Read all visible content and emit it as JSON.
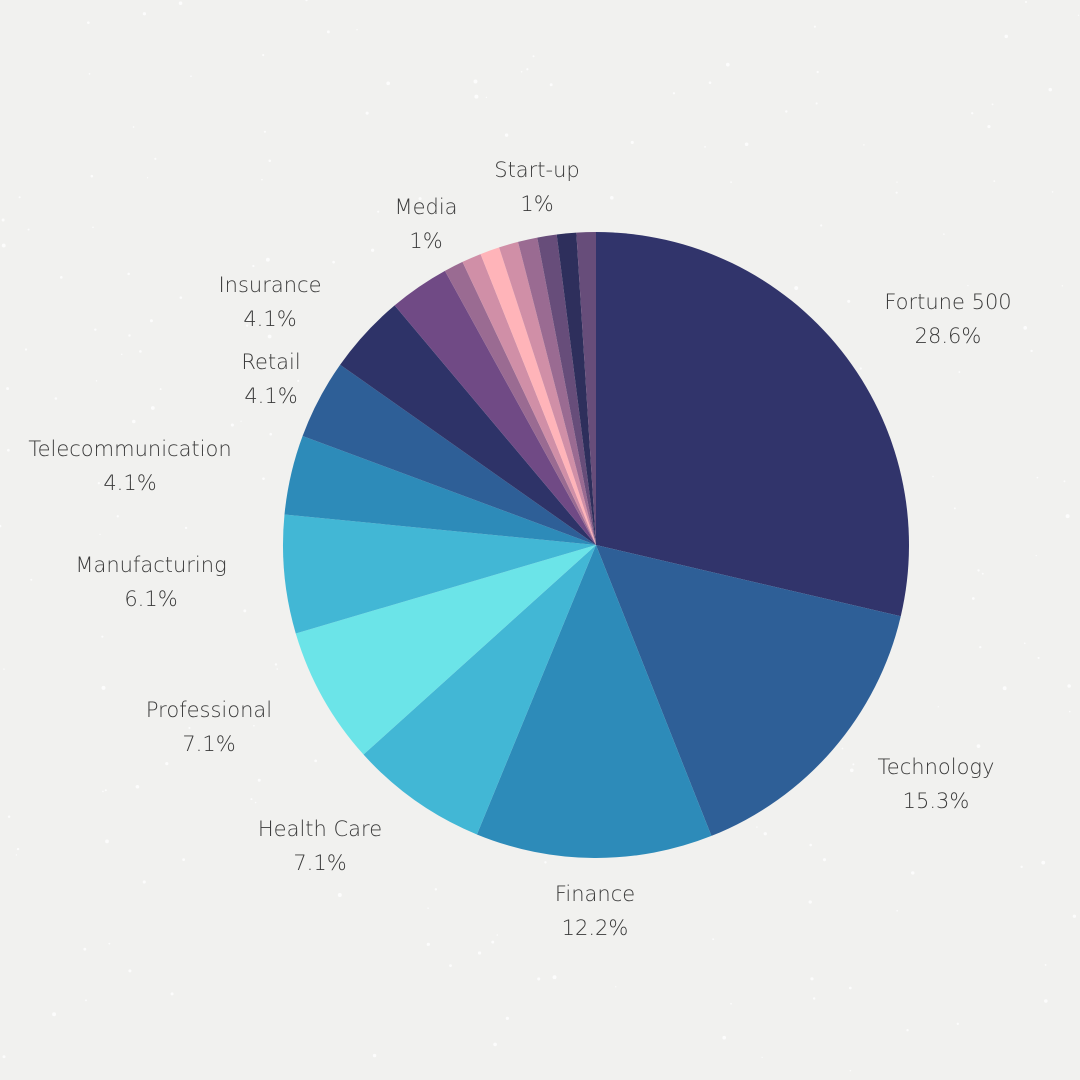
{
  "chart_data": {
    "type": "pie",
    "title": "",
    "slices": [
      {
        "label": "Fortune 500",
        "value": 28.6,
        "value_label": "28.6%",
        "color": "#31346b"
      },
      {
        "label": "Technology",
        "value": 15.3,
        "value_label": "15.3%",
        "color": "#2e5f97"
      },
      {
        "label": "Finance",
        "value": 12.2,
        "value_label": "12.2%",
        "color": "#2d8bb9"
      },
      {
        "label": "Health Care",
        "value": 7.1,
        "value_label": "7.1%",
        "color": "#42b7d5"
      },
      {
        "label": "Professional",
        "value": 7.1,
        "value_label": "7.1%",
        "color": "#6be4e8"
      },
      {
        "label": "Manufacturing",
        "value": 6.1,
        "value_label": "6.1%",
        "color": "#42b7d5"
      },
      {
        "label": "Telecommunication",
        "value": 4.1,
        "value_label": "4.1%",
        "color": "#2d8bb9"
      },
      {
        "label": "Retail",
        "value": 4.1,
        "value_label": "4.1%",
        "color": "#2e5f97"
      },
      {
        "label": "Insurance",
        "value": 4.1,
        "value_label": "4.1%",
        "color": "#2e3368"
      },
      {
        "label": null,
        "value": 3.1,
        "value_label": null,
        "color": "#704a85"
      },
      {
        "label": "Media",
        "value": 1,
        "value_label": "1%",
        "color": "#9a6b92"
      },
      {
        "label": null,
        "value": 1,
        "value_label": null,
        "color": "#d08fa7"
      },
      {
        "label": null,
        "value": 1,
        "value_label": null,
        "color": "#ffb4b9"
      },
      {
        "label": null,
        "value": 1,
        "value_label": null,
        "color": "#d08fa7"
      },
      {
        "label": "Start-up",
        "value": 1,
        "value_label": "1%",
        "color": "#9a6b92"
      },
      {
        "label": null,
        "value": 1,
        "value_label": null,
        "color": "#674d7a"
      },
      {
        "label": null,
        "value": 1,
        "value_label": null,
        "color": "#2e2f5c"
      },
      {
        "label": null,
        "value": 1,
        "value_label": null,
        "color": "#674d7a"
      }
    ],
    "start_angle": "top",
    "direction": "clockwise",
    "legend": "none"
  }
}
